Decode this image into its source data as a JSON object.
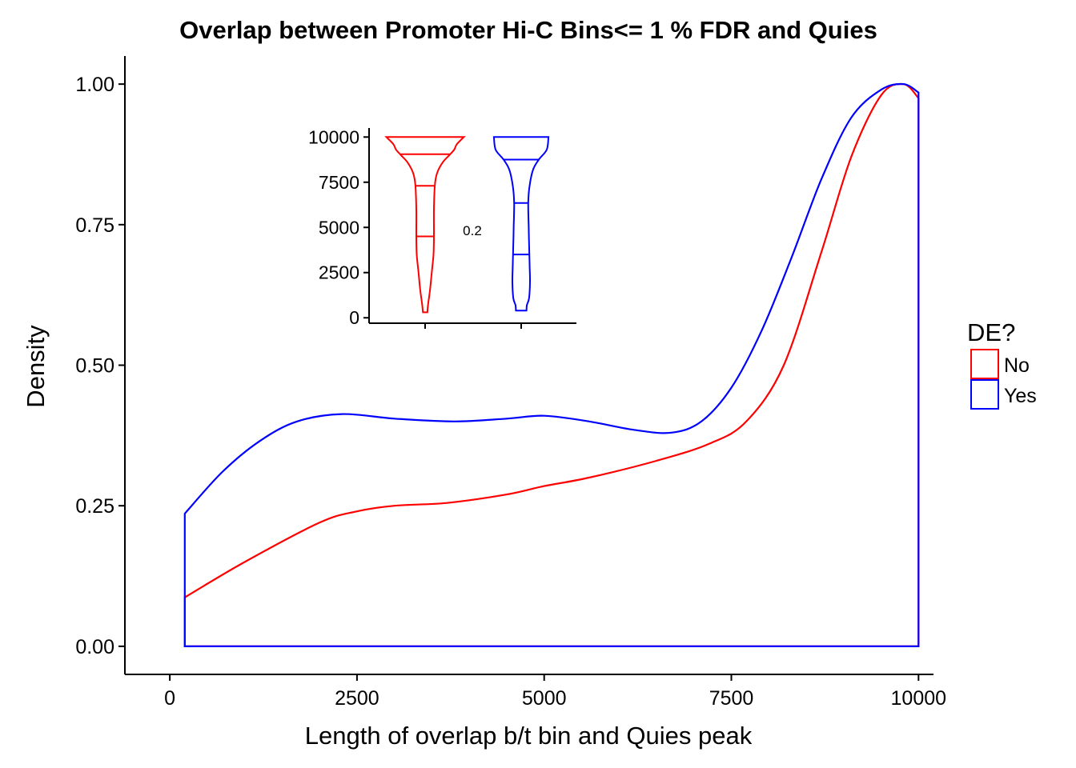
{
  "chart_data": [
    {
      "type": "area",
      "title": "Overlap between Promoter Hi-C Bins<= 1 % FDR and Quies",
      "xlabel": "Length of overlap b/t bin and Quies peak",
      "ylabel": "Density",
      "xlim": [
        -600,
        10200
      ],
      "ylim": [
        -0.05,
        1.05
      ],
      "xticks": [
        0,
        2500,
        5000,
        7500,
        10000
      ],
      "xtick_labels": [
        "0",
        "2500",
        "5000",
        "7500",
        "10000"
      ],
      "yticks": [
        0,
        0.25,
        0.5,
        0.75,
        1.0
      ],
      "ytick_labels": [
        "0.00",
        "0.25",
        "0.50",
        "0.75",
        "1.00"
      ],
      "grid": false,
      "legend": {
        "title": "DE?",
        "position": "right",
        "entries": [
          "No",
          "Yes"
        ]
      },
      "series": [
        {
          "name": "No",
          "color": "#ff0000",
          "x": [
            200,
            1000,
            2000,
            2500,
            3000,
            3700,
            4500,
            5000,
            5600,
            6500,
            7200,
            7700,
            8200,
            8700,
            9100,
            9500,
            9800,
            10000
          ],
          "y": [
            0.087,
            0.15,
            0.22,
            0.24,
            0.25,
            0.255,
            0.27,
            0.285,
            0.3,
            0.33,
            0.36,
            0.4,
            0.5,
            0.7,
            0.87,
            0.98,
            1.0,
            0.975
          ]
        },
        {
          "name": "Yes",
          "color": "#0000ff",
          "x": [
            200,
            700,
            1200,
            1700,
            2300,
            3000,
            3800,
            4500,
            5000,
            5600,
            6200,
            6700,
            7100,
            7500,
            7900,
            8300,
            8700,
            9100,
            9500,
            9800,
            10000
          ],
          "y": [
            0.236,
            0.31,
            0.365,
            0.4,
            0.413,
            0.405,
            0.4,
            0.405,
            0.41,
            0.4,
            0.385,
            0.38,
            0.4,
            0.46,
            0.56,
            0.69,
            0.83,
            0.94,
            0.99,
            1.0,
            0.985
          ]
        }
      ]
    },
    {
      "type": "violin",
      "annotation": "0.2",
      "ylim": [
        -300,
        10500
      ],
      "yticks": [
        0,
        2500,
        5000,
        7500,
        10000
      ],
      "ytick_labels": [
        "0",
        "2500",
        "5000",
        "7500",
        "10000"
      ],
      "groups": [
        {
          "name": "No",
          "color": "#ff0000",
          "quantiles": [
            4500,
            7300,
            9050
          ],
          "profile": [
            [
              10000,
              0.88
            ],
            [
              9600,
              0.72
            ],
            [
              9300,
              0.66
            ],
            [
              9000,
              0.55
            ],
            [
              8600,
              0.4
            ],
            [
              8000,
              0.27
            ],
            [
              7300,
              0.22
            ],
            [
              6000,
              0.2
            ],
            [
              4500,
              0.2
            ],
            [
              3500,
              0.19
            ],
            [
              2500,
              0.15
            ],
            [
              1500,
              0.11
            ],
            [
              800,
              0.07
            ],
            [
              300,
              0.05
            ]
          ]
        },
        {
          "name": "Yes",
          "color": "#0000ff",
          "quantiles": [
            3500,
            6350,
            8750
          ],
          "profile": [
            [
              10000,
              0.62
            ],
            [
              9300,
              0.58
            ],
            [
              8750,
              0.4
            ],
            [
              8200,
              0.27
            ],
            [
              7300,
              0.19
            ],
            [
              6350,
              0.16
            ],
            [
              5000,
              0.17
            ],
            [
              4000,
              0.18
            ],
            [
              3000,
              0.19
            ],
            [
              2000,
              0.2
            ],
            [
              1100,
              0.18
            ],
            [
              700,
              0.13
            ],
            [
              400,
              0.12
            ]
          ]
        }
      ]
    }
  ]
}
